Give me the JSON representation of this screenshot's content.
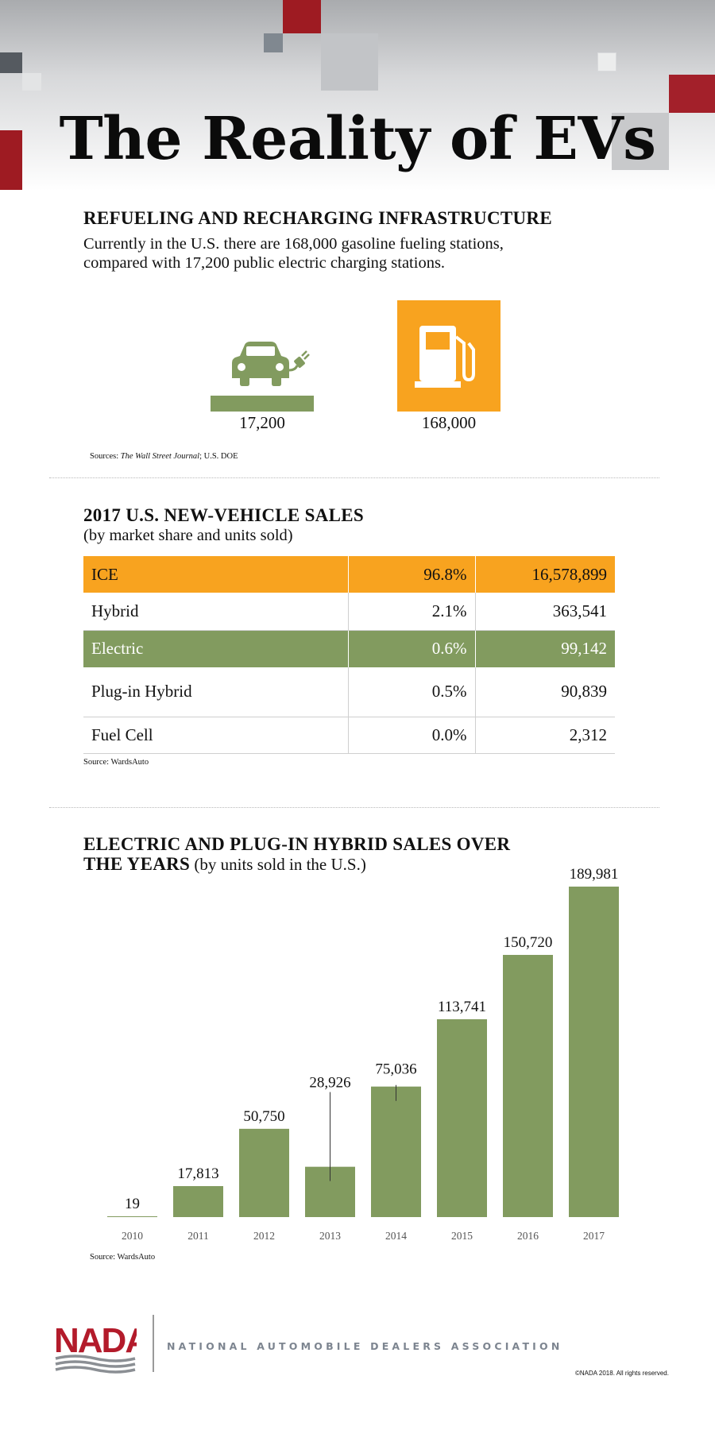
{
  "title": "The Reality of EVs",
  "infrastructure": {
    "heading": "REFUELING AND RECHARGING INFRASTRUCTURE",
    "line1": "Currently in the U.S. there are 168,000 gasoline fueling stations,",
    "line2": "compared with 17,200 public electric charging stations.",
    "ev_value": 17200,
    "ev_label": "17,200",
    "gas_value": 168000,
    "gas_label": "168,000",
    "source_prefix": "Sources: ",
    "source_italic": "The Wall Street Journal",
    "source_suffix": "; U.S. DOE",
    "colors": {
      "ev": "#829b5f",
      "gas": "#f8a31f"
    },
    "icons": {
      "ev": "electric-car-plug-icon",
      "gas": "gas-pump-icon"
    }
  },
  "sales_table": {
    "heading": "2017 U.S. NEW-VEHICLE SALES",
    "subheading": "(by market share and units sold)",
    "rows": [
      {
        "type": "ICE",
        "share": "96.8%",
        "units": "16,578,899"
      },
      {
        "type": "Hybrid",
        "share": "2.1%",
        "units": "363,541"
      },
      {
        "type": "Electric",
        "share": "0.6%",
        "units": "99,142"
      },
      {
        "type": "Plug-in Hybrid",
        "share": "0.5%",
        "units": "90,839"
      },
      {
        "type": "Fuel Cell",
        "share": "0.0%",
        "units": "2,312"
      }
    ],
    "source": "Source: WardsAuto"
  },
  "chart_heading": {
    "line1": "ELECTRIC AND PLUG-IN HYBRID SALES OVER",
    "line2_bold": "THE YEARS",
    "line2_rest": " (by units sold in the U.S.)"
  },
  "chart_data": {
    "type": "bar",
    "title": "ELECTRIC AND PLUG-IN HYBRID SALES OVER THE YEARS (by units sold in the U.S.)",
    "categories": [
      "2010",
      "2011",
      "2012",
      "2013",
      "2014",
      "2015",
      "2016",
      "2017"
    ],
    "values": [
      19,
      17813,
      50750,
      28926,
      75036,
      113741,
      150720,
      189981
    ],
    "value_labels": [
      "19",
      "17,813",
      "50,750",
      "28,926",
      "75,036",
      "113,741",
      "150,720",
      "189,981"
    ],
    "xlabel": "",
    "ylabel": "",
    "ylim": [
      0,
      189981
    ],
    "grid": false,
    "bar_color": "#829b5f"
  },
  "chart_source": "Source: WardsAuto",
  "footer": {
    "logo_text": "NADA",
    "association": "NATIONAL AUTOMOBILE DEALERS ASSOCIATION",
    "copyright": "©NADA 2018. All rights reserved.",
    "logo_color": "#b31b2b"
  }
}
